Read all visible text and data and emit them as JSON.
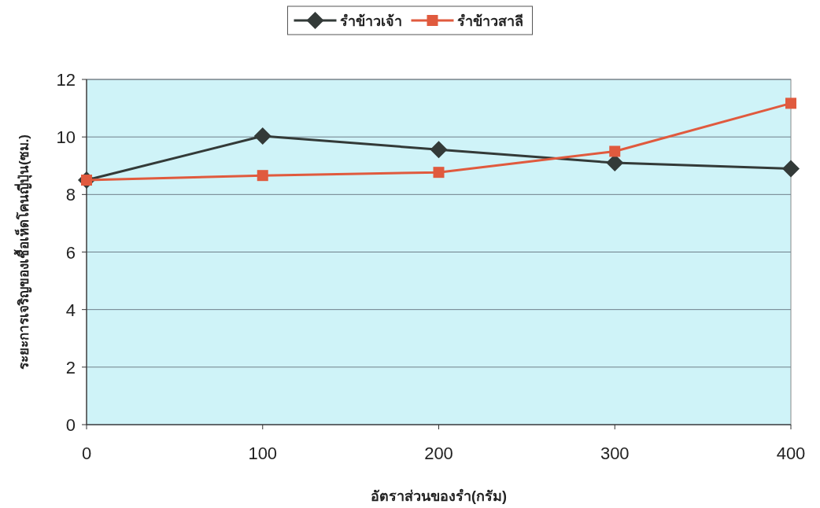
{
  "chart_data": {
    "type": "line",
    "xlabel": "อัตราส่วนของรำ(กรัม)",
    "ylabel": "ระยะการเจริญของเชื้อเห็ดโคนญี่ปุ่น(ซม.)",
    "x": [
      0,
      100,
      200,
      300,
      400
    ],
    "xlim": [
      0,
      400
    ],
    "xticks": [
      0,
      100,
      200,
      300,
      400
    ],
    "ylim": [
      0,
      12
    ],
    "yticks": [
      0,
      2,
      4,
      6,
      8,
      10,
      12
    ],
    "grid": "y",
    "legend": "top",
    "series": [
      {
        "name": "รำข้าวเจ้า",
        "color": "#333a38",
        "marker": "diamond",
        "values": [
          8.5,
          10.03,
          9.56,
          9.1,
          8.9
        ]
      },
      {
        "name": "รำข้าวสาลี",
        "color": "#e05a3e",
        "marker": "square",
        "values": [
          8.5,
          8.66,
          8.77,
          9.5,
          11.17
        ]
      }
    ]
  }
}
